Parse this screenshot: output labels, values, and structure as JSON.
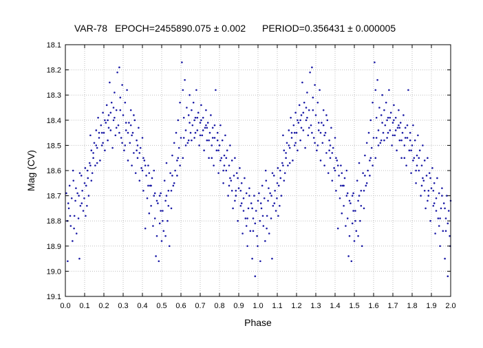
{
  "chart_data": {
    "type": "scatter",
    "title": {
      "star": "VAR-78",
      "epoch": "EPOCH=2455890.075 ± 0.002",
      "period": "PERIOD=0.356431 ± 0.000005"
    },
    "xlabel": "Phase",
    "ylabel": "Mag (CV)",
    "xlim": [
      0.0,
      2.0
    ],
    "ylim": [
      18.1,
      19.1
    ],
    "y_inverted": true,
    "xticks": [
      "0.0",
      "0.1",
      "0.2",
      "0.3",
      "0.4",
      "0.5",
      "0.6",
      "0.7",
      "0.8",
      "0.9",
      "1.0",
      "1.1",
      "1.2",
      "1.3",
      "1.4",
      "1.5",
      "1.6",
      "1.7",
      "1.8",
      "1.9",
      "2.0"
    ],
    "yticks": [
      "18.1",
      "18.2",
      "18.3",
      "18.4",
      "18.5",
      "18.6",
      "18.7",
      "18.8",
      "18.9",
      "19.0",
      "19.1"
    ],
    "grid": true,
    "marker_color": "#1a1aa6",
    "series": [
      {
        "points": [
          [
            0.005,
            18.69
          ],
          [
            0.012,
            18.96
          ],
          [
            0.018,
            18.75
          ],
          [
            0.022,
            18.66
          ],
          [
            0.028,
            18.82
          ],
          [
            0.033,
            18.71
          ],
          [
            0.037,
            18.88
          ],
          [
            0.042,
            18.64
          ],
          [
            0.047,
            18.78
          ],
          [
            0.052,
            18.72
          ],
          [
            0.058,
            18.85
          ],
          [
            0.063,
            18.69
          ],
          [
            0.068,
            18.79
          ],
          [
            0.073,
            18.95
          ],
          [
            0.078,
            18.74
          ],
          [
            0.083,
            18.62
          ],
          [
            0.088,
            18.68
          ],
          [
            0.093,
            18.76
          ],
          [
            0.098,
            18.71
          ],
          [
            0.103,
            18.59
          ],
          [
            0.108,
            18.66
          ],
          [
            0.112,
            18.74
          ],
          [
            0.117,
            18.63
          ],
          [
            0.121,
            18.7
          ],
          [
            0.126,
            18.57
          ],
          [
            0.13,
            18.46
          ],
          [
            0.135,
            18.52
          ],
          [
            0.14,
            18.61
          ],
          [
            0.145,
            18.55
          ],
          [
            0.15,
            18.49
          ],
          [
            0.155,
            18.58
          ],
          [
            0.16,
            18.44
          ],
          [
            0.165,
            18.51
          ],
          [
            0.17,
            18.39
          ],
          [
            0.175,
            18.47
          ],
          [
            0.18,
            18.56
          ],
          [
            0.185,
            18.42
          ],
          [
            0.19,
            18.5
          ],
          [
            0.195,
            18.37
          ],
          [
            0.2,
            18.45
          ],
          [
            0.205,
            18.52
          ],
          [
            0.21,
            18.41
          ],
          [
            0.215,
            18.34
          ],
          [
            0.22,
            18.48
          ],
          [
            0.225,
            18.38
          ],
          [
            0.23,
            18.25
          ],
          [
            0.235,
            18.44
          ],
          [
            0.24,
            18.33
          ],
          [
            0.245,
            18.51
          ],
          [
            0.25,
            18.4
          ],
          [
            0.255,
            18.29
          ],
          [
            0.26,
            18.46
          ],
          [
            0.265,
            18.36
          ],
          [
            0.27,
            18.21
          ],
          [
            0.275,
            18.42
          ],
          [
            0.28,
            18.19
          ],
          [
            0.285,
            18.31
          ],
          [
            0.29,
            18.47
          ],
          [
            0.295,
            18.26
          ],
          [
            0.3,
            18.38
          ],
          [
            0.305,
            18.52
          ],
          [
            0.31,
            18.33
          ],
          [
            0.315,
            18.44
          ],
          [
            0.32,
            18.28
          ],
          [
            0.325,
            18.56
          ],
          [
            0.33,
            18.41
          ],
          [
            0.335,
            18.49
          ],
          [
            0.34,
            18.36
          ],
          [
            0.345,
            18.58
          ],
          [
            0.35,
            18.45
          ],
          [
            0.355,
            18.53
          ],
          [
            0.36,
            18.4
          ],
          [
            0.365,
            18.61
          ],
          [
            0.37,
            18.48
          ],
          [
            0.375,
            18.55
          ],
          [
            0.38,
            18.43
          ],
          [
            0.385,
            18.64
          ],
          [
            0.39,
            18.51
          ],
          [
            0.395,
            18.59
          ],
          [
            0.4,
            18.47
          ],
          [
            0.405,
            18.68
          ],
          [
            0.41,
            18.56
          ],
          [
            0.415,
            18.83
          ],
          [
            0.42,
            18.62
          ],
          [
            0.425,
            18.71
          ],
          [
            0.43,
            18.58
          ],
          [
            0.435,
            18.77
          ],
          [
            0.44,
            18.66
          ],
          [
            0.445,
            18.74
          ],
          [
            0.45,
            18.63
          ],
          [
            0.455,
            18.82
          ],
          [
            0.46,
            18.7
          ],
          [
            0.465,
            18.79
          ],
          [
            0.47,
            18.94
          ],
          [
            0.475,
            18.86
          ],
          [
            0.48,
            18.73
          ],
          [
            0.485,
            18.96
          ],
          [
            0.49,
            18.81
          ],
          [
            0.495,
            18.69
          ],
          [
            0.5,
            18.88
          ],
          [
            0.505,
            18.76
          ],
          [
            0.51,
            18.84
          ],
          [
            0.515,
            18.64
          ],
          [
            0.52,
            18.72
          ],
          [
            0.525,
            18.57
          ],
          [
            0.53,
            18.8
          ],
          [
            0.535,
            18.68
          ],
          [
            0.54,
            18.9
          ],
          [
            0.545,
            18.61
          ],
          [
            0.55,
            18.75
          ],
          [
            0.555,
            18.54
          ],
          [
            0.56,
            18.66
          ],
          [
            0.565,
            18.49
          ],
          [
            0.57,
            18.6
          ],
          [
            0.575,
            18.45
          ],
          [
            0.58,
            18.56
          ],
          [
            0.585,
            18.4
          ],
          [
            0.59,
            18.51
          ],
          [
            0.595,
            18.33
          ],
          [
            0.6,
            18.47
          ],
          [
            0.605,
            18.17
          ],
          [
            0.61,
            18.28
          ],
          [
            0.615,
            18.39
          ],
          [
            0.62,
            18.24
          ],
          [
            0.625,
            18.44
          ],
          [
            0.63,
            18.35
          ],
          [
            0.635,
            18.49
          ],
          [
            0.64,
            18.38
          ],
          [
            0.645,
            18.3
          ],
          [
            0.65,
            18.45
          ],
          [
            0.655,
            18.36
          ],
          [
            0.66,
            18.42
          ],
          [
            0.665,
            18.33
          ],
          [
            0.67,
            18.47
          ],
          [
            0.675,
            18.39
          ],
          [
            0.68,
            18.28
          ],
          [
            0.685,
            18.44
          ],
          [
            0.69,
            18.37
          ],
          [
            0.695,
            18.5
          ],
          [
            0.7,
            18.41
          ],
          [
            0.705,
            18.34
          ],
          [
            0.71,
            18.46
          ],
          [
            0.715,
            18.39
          ],
          [
            0.72,
            18.52
          ],
          [
            0.725,
            18.43
          ],
          [
            0.73,
            18.36
          ],
          [
            0.735,
            18.48
          ],
          [
            0.74,
            18.41
          ],
          [
            0.745,
            18.55
          ],
          [
            0.75,
            18.45
          ],
          [
            0.755,
            18.38
          ],
          [
            0.76,
            18.5
          ],
          [
            0.765,
            18.43
          ],
          [
            0.77,
            18.58
          ],
          [
            0.775,
            18.47
          ],
          [
            0.78,
            18.28
          ],
          [
            0.785,
            18.52
          ],
          [
            0.79,
            18.45
          ],
          [
            0.795,
            18.61
          ],
          [
            0.8,
            18.5
          ],
          [
            0.805,
            18.42
          ],
          [
            0.81,
            18.55
          ],
          [
            0.815,
            18.48
          ],
          [
            0.82,
            18.65
          ],
          [
            0.825,
            18.54
          ],
          [
            0.83,
            18.46
          ],
          [
            0.835,
            18.6
          ],
          [
            0.84,
            18.52
          ],
          [
            0.845,
            18.7
          ],
          [
            0.85,
            18.58
          ],
          [
            0.855,
            18.5
          ],
          [
            0.86,
            18.64
          ],
          [
            0.865,
            18.56
          ],
          [
            0.87,
            18.75
          ],
          [
            0.875,
            18.62
          ],
          [
            0.88,
            18.55
          ],
          [
            0.885,
            18.7
          ],
          [
            0.89,
            18.61
          ],
          [
            0.895,
            18.8
          ],
          [
            0.9,
            18.67
          ],
          [
            0.905,
            18.59
          ],
          [
            0.91,
            18.74
          ],
          [
            0.915,
            18.65
          ],
          [
            0.92,
            18.85
          ],
          [
            0.925,
            18.71
          ],
          [
            0.93,
            18.63
          ],
          [
            0.935,
            18.79
          ],
          [
            0.94,
            18.69
          ],
          [
            0.945,
            18.9
          ],
          [
            0.95,
            18.75
          ],
          [
            0.955,
            18.67
          ],
          [
            0.96,
            18.84
          ],
          [
            0.965,
            18.73
          ],
          [
            0.97,
            18.95
          ],
          [
            0.975,
            18.79
          ],
          [
            0.98,
            18.7
          ],
          [
            0.985,
            19.02
          ],
          [
            0.99,
            18.76
          ],
          [
            0.995,
            18.86
          ],
          [
            1.0,
            18.72
          ],
          [
            0.015,
            18.73
          ],
          [
            0.045,
            18.83
          ],
          [
            0.075,
            18.61
          ],
          [
            0.105,
            18.78
          ],
          [
            0.135,
            18.64
          ],
          [
            0.165,
            18.57
          ],
          [
            0.195,
            18.49
          ],
          [
            0.225,
            18.43
          ],
          [
            0.255,
            18.39
          ],
          [
            0.285,
            18.36
          ],
          [
            0.315,
            18.41
          ],
          [
            0.345,
            18.46
          ],
          [
            0.375,
            18.5
          ],
          [
            0.405,
            18.55
          ],
          [
            0.435,
            18.61
          ],
          [
            0.465,
            18.69
          ],
          [
            0.495,
            18.76
          ],
          [
            0.525,
            18.7
          ],
          [
            0.555,
            18.62
          ],
          [
            0.585,
            18.55
          ],
          [
            0.615,
            18.47
          ],
          [
            0.645,
            18.41
          ],
          [
            0.675,
            18.45
          ],
          [
            0.705,
            18.4
          ],
          [
            0.735,
            18.43
          ],
          [
            0.765,
            18.47
          ],
          [
            0.795,
            18.52
          ],
          [
            0.825,
            18.58
          ],
          [
            0.855,
            18.63
          ],
          [
            0.885,
            18.68
          ],
          [
            0.915,
            18.73
          ],
          [
            0.945,
            18.79
          ],
          [
            0.975,
            18.84
          ],
          [
            0.025,
            18.78
          ],
          [
            0.055,
            18.67
          ],
          [
            0.085,
            18.73
          ],
          [
            0.115,
            18.6
          ],
          [
            0.145,
            18.53
          ],
          [
            0.175,
            18.45
          ],
          [
            0.205,
            18.4
          ],
          [
            0.235,
            18.37
          ],
          [
            0.265,
            18.43
          ],
          [
            0.295,
            18.49
          ],
          [
            0.325,
            18.45
          ],
          [
            0.355,
            18.38
          ],
          [
            0.385,
            18.53
          ],
          [
            0.415,
            18.58
          ],
          [
            0.445,
            18.66
          ],
          [
            0.475,
            18.72
          ],
          [
            0.505,
            18.8
          ],
          [
            0.535,
            18.74
          ],
          [
            0.565,
            18.65
          ],
          [
            0.595,
            18.58
          ],
          [
            0.625,
            18.5
          ],
          [
            0.655,
            18.48
          ],
          [
            0.685,
            18.39
          ],
          [
            0.715,
            18.44
          ],
          [
            0.745,
            18.48
          ],
          [
            0.775,
            18.42
          ],
          [
            0.805,
            18.56
          ],
          [
            0.835,
            18.55
          ],
          [
            0.865,
            18.68
          ],
          [
            0.895,
            18.63
          ],
          [
            0.925,
            18.76
          ],
          [
            0.955,
            18.7
          ],
          [
            0.985,
            18.81
          ],
          [
            0.01,
            18.8
          ],
          [
            0.04,
            18.6
          ],
          [
            0.07,
            18.7
          ],
          [
            0.1,
            18.65
          ],
          [
            0.13,
            18.58
          ],
          [
            0.16,
            18.5
          ],
          [
            0.19,
            18.45
          ],
          [
            0.22,
            18.4
          ],
          [
            0.25,
            18.35
          ],
          [
            0.28,
            18.45
          ],
          [
            0.31,
            18.5
          ],
          [
            0.34,
            18.42
          ],
          [
            0.37,
            18.52
          ],
          [
            0.4,
            18.6
          ],
          [
            0.43,
            18.66
          ],
          [
            0.46,
            18.6
          ],
          [
            0.49,
            18.7
          ],
          [
            0.52,
            18.86
          ],
          [
            0.55,
            18.68
          ],
          [
            0.58,
            18.62
          ],
          [
            0.61,
            18.55
          ],
          [
            0.64,
            18.48
          ],
          [
            0.67,
            18.4
          ],
          [
            0.7,
            18.46
          ],
          [
            0.73,
            18.42
          ],
          [
            0.76,
            18.55
          ],
          [
            0.79,
            18.48
          ],
          [
            0.82,
            18.6
          ],
          [
            0.85,
            18.66
          ],
          [
            0.88,
            18.72
          ],
          [
            0.91,
            18.68
          ],
          [
            0.94,
            18.82
          ],
          [
            0.97,
            18.75
          ],
          [
            0.998,
            18.9
          ]
        ]
      }
    ]
  }
}
